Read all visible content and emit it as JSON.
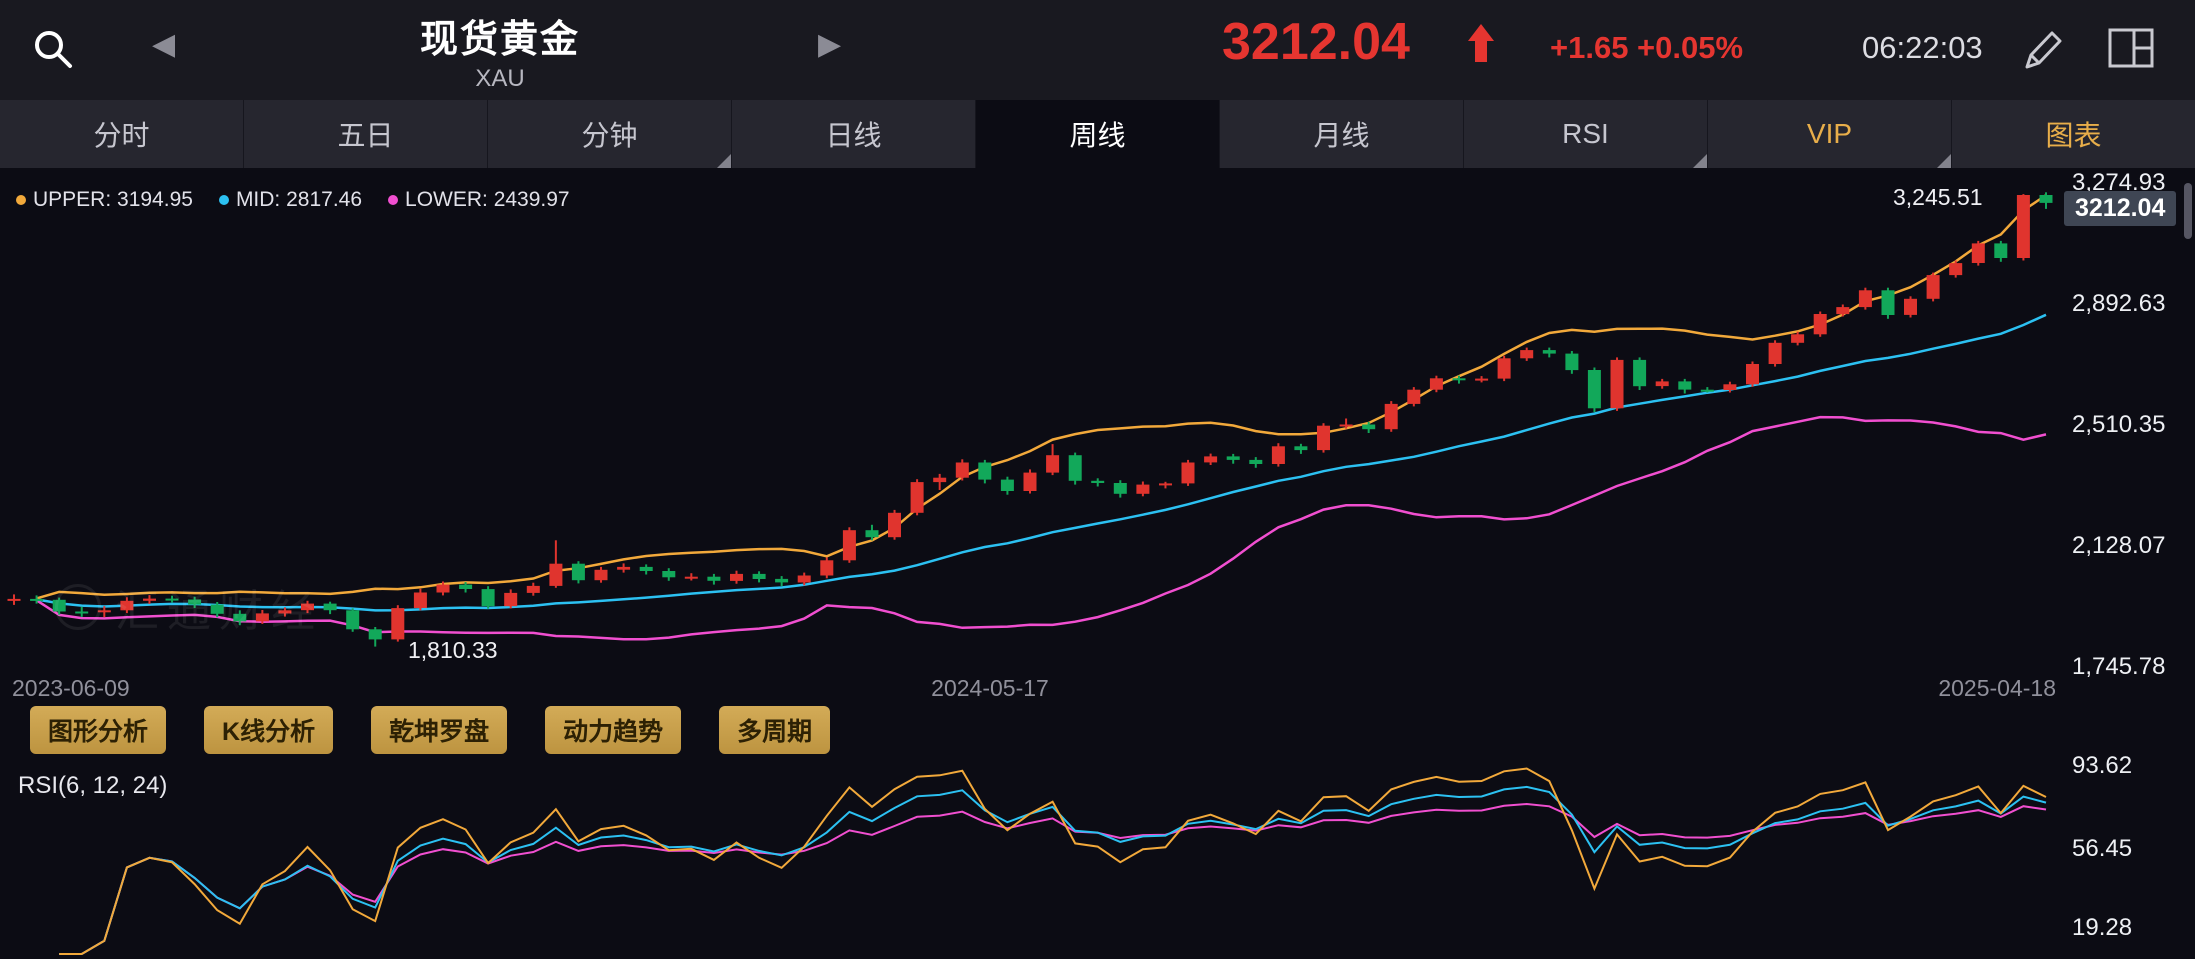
{
  "topbar": {
    "title": "现货黄金",
    "subtitle": "XAU",
    "prev_arrow": "◀",
    "next_arrow": "▶",
    "price": "3212.04",
    "change": "+1.65 +0.05%",
    "time": "06:22:03"
  },
  "tabs": [
    {
      "label": "分时"
    },
    {
      "label": "五日"
    },
    {
      "label": "分钟",
      "dropdown": true
    },
    {
      "label": "日线"
    },
    {
      "label": "周线",
      "active": true
    },
    {
      "label": "月线"
    },
    {
      "label": "RSI",
      "dropdown": true
    },
    {
      "label": "VIP",
      "dropdown": true,
      "gold": true
    },
    {
      "label": "图表",
      "gold": true
    }
  ],
  "legend": {
    "items": [
      {
        "text": "UPPER: 3194.95",
        "color": "#f2a93b"
      },
      {
        "text": "MID: 2817.46",
        "color": "#2cc1f2"
      },
      {
        "text": "LOWER: 2439.97",
        "color": "#f14fd0"
      }
    ]
  },
  "annotations": {
    "high": "3,245.51",
    "low": "1,810.33"
  },
  "price_tag": "3212.04",
  "y_axis": [
    "3,274.93",
    "2,892.63",
    "2,510.35",
    "2,128.07",
    "1,745.78"
  ],
  "x_axis": [
    "2023-06-09",
    "2024-05-17",
    "2025-04-18"
  ],
  "buttons": [
    "图形分析",
    "K线分析",
    "乾坤罗盘",
    "动力趋势",
    "多周期"
  ],
  "rsi": {
    "label": "RSI(6, 12, 24)",
    "axis": [
      "93.62",
      "56.45",
      "19.28"
    ],
    "periods": [
      6,
      12,
      24
    ]
  },
  "watermark": "汇通财经",
  "colors": {
    "up": "#e0342e",
    "down": "#12a85a",
    "band_upper": "#f2a93b",
    "band_mid": "#2cc1f2",
    "band_lower": "#f14fd0",
    "price_red": "#e53530",
    "tag_bg": "#3f4654"
  },
  "chart_data": {
    "type": "candlestick",
    "title": "现货黄金 XAU 周线",
    "interval": "weekly",
    "x_range": [
      "2023-06-09",
      "2025-04-18"
    ],
    "y_top": 3274.93,
    "y_bottom": 1745.78,
    "y_axis_ticks": [
      3274.93,
      2892.63,
      2510.35,
      2128.07,
      1745.78
    ],
    "boll": {
      "period": 20,
      "mult": 2,
      "upper": 3194.95,
      "mid": 2817.46,
      "lower": 2439.97
    },
    "high_label": 3245.51,
    "low_label": 1810.33,
    "last_price": 3212.04,
    "rsi_axis": [
      93.62,
      56.45,
      19.28
    ],
    "candles": [
      [
        1955,
        1975,
        1942,
        1961
      ],
      [
        1961,
        1972,
        1946,
        1958
      ],
      [
        1958,
        1965,
        1911,
        1921
      ],
      [
        1921,
        1936,
        1904,
        1919
      ],
      [
        1919,
        1938,
        1903,
        1925
      ],
      [
        1925,
        1966,
        1916,
        1955
      ],
      [
        1955,
        1973,
        1945,
        1962
      ],
      [
        1962,
        1971,
        1950,
        1959
      ],
      [
        1959,
        1968,
        1932,
        1943
      ],
      [
        1943,
        1951,
        1903,
        1914
      ],
      [
        1914,
        1925,
        1878,
        1890
      ],
      [
        1890,
        1926,
        1882,
        1915
      ],
      [
        1915,
        1934,
        1905,
        1925
      ],
      [
        1925,
        1955,
        1916,
        1946
      ],
      [
        1946,
        1952,
        1913,
        1925
      ],
      [
        1925,
        1931,
        1857,
        1865
      ],
      [
        1865,
        1872,
        1810.33,
        1833
      ],
      [
        1833,
        1941,
        1826,
        1932
      ],
      [
        1932,
        1993,
        1925,
        1981
      ],
      [
        1981,
        2016,
        1972,
        2006
      ],
      [
        2006,
        2014,
        1981,
        1992
      ],
      [
        1992,
        2001,
        1930,
        1938
      ],
      [
        1938,
        1991,
        1931,
        1980
      ],
      [
        1980,
        2012,
        1971,
        2002
      ],
      [
        2002,
        2146,
        1996,
        2072
      ],
      [
        2072,
        2080,
        2010,
        2020
      ],
      [
        2020,
        2062,
        2012,
        2053
      ],
      [
        2053,
        2073,
        2044,
        2062
      ],
      [
        2062,
        2070,
        2038,
        2049
      ],
      [
        2049,
        2058,
        2018,
        2029
      ],
      [
        2029,
        2042,
        2019,
        2031
      ],
      [
        2031,
        2040,
        2006,
        2018
      ],
      [
        2018,
        2050,
        2009,
        2040
      ],
      [
        2040,
        2048,
        2013,
        2024
      ],
      [
        2024,
        2033,
        2001,
        2013
      ],
      [
        2013,
        2044,
        2004,
        2035
      ],
      [
        2035,
        2092,
        2026,
        2083
      ],
      [
        2083,
        2187,
        2075,
        2178
      ],
      [
        2178,
        2195,
        2146,
        2156
      ],
      [
        2156,
        2242,
        2148,
        2233
      ],
      [
        2233,
        2339,
        2225,
        2330
      ],
      [
        2330,
        2356,
        2305,
        2344
      ],
      [
        2344,
        2402,
        2335,
        2392
      ],
      [
        2392,
        2400,
        2326,
        2338
      ],
      [
        2338,
        2347,
        2290,
        2302
      ],
      [
        2302,
        2370,
        2294,
        2360
      ],
      [
        2360,
        2450,
        2352,
        2415
      ],
      [
        2415,
        2423,
        2322,
        2334
      ],
      [
        2334,
        2342,
        2316,
        2327
      ],
      [
        2327,
        2336,
        2281,
        2293
      ],
      [
        2293,
        2332,
        2285,
        2322
      ],
      [
        2322,
        2331,
        2310,
        2326
      ],
      [
        2326,
        2400,
        2318,
        2392
      ],
      [
        2392,
        2420,
        2384,
        2411
      ],
      [
        2411,
        2419,
        2388,
        2400
      ],
      [
        2400,
        2409,
        2375,
        2387
      ],
      [
        2387,
        2453,
        2379,
        2443
      ],
      [
        2443,
        2451,
        2419,
        2431
      ],
      [
        2431,
        2516,
        2423,
        2508
      ],
      [
        2508,
        2531,
        2499,
        2512
      ],
      [
        2512,
        2520,
        2485,
        2497
      ],
      [
        2497,
        2586,
        2489,
        2577
      ],
      [
        2577,
        2630,
        2569,
        2622
      ],
      [
        2622,
        2666,
        2614,
        2658
      ],
      [
        2658,
        2666,
        2641,
        2653
      ],
      [
        2653,
        2665,
        2645,
        2657
      ],
      [
        2657,
        2729,
        2649,
        2721
      ],
      [
        2721,
        2755,
        2713,
        2747
      ],
      [
        2747,
        2755,
        2724,
        2736
      ],
      [
        2736,
        2744,
        2672,
        2684
      ],
      [
        2684,
        2692,
        2551,
        2563
      ],
      [
        2563,
        2724,
        2555,
        2716
      ],
      [
        2716,
        2724,
        2621,
        2633
      ],
      [
        2633,
        2656,
        2625,
        2648
      ],
      [
        2648,
        2656,
        2610,
        2622
      ],
      [
        2622,
        2630,
        2613,
        2621
      ],
      [
        2621,
        2647,
        2613,
        2639
      ],
      [
        2639,
        2711,
        2631,
        2703
      ],
      [
        2703,
        2778,
        2695,
        2770
      ],
      [
        2770,
        2805,
        2762,
        2797
      ],
      [
        2797,
        2869,
        2789,
        2861
      ],
      [
        2861,
        2891,
        2853,
        2883
      ],
      [
        2883,
        2944,
        2875,
        2936
      ],
      [
        2936,
        2944,
        2846,
        2858
      ],
      [
        2858,
        2917,
        2850,
        2909
      ],
      [
        2909,
        2992,
        2901,
        2984
      ],
      [
        2984,
        3030,
        2976,
        3022
      ],
      [
        3022,
        3092,
        3014,
        3084
      ],
      [
        3084,
        3092,
        3026,
        3038
      ],
      [
        3038,
        3240,
        3030,
        3237
      ],
      [
        3237,
        3245.51,
        3193,
        3212.04
      ]
    ]
  }
}
